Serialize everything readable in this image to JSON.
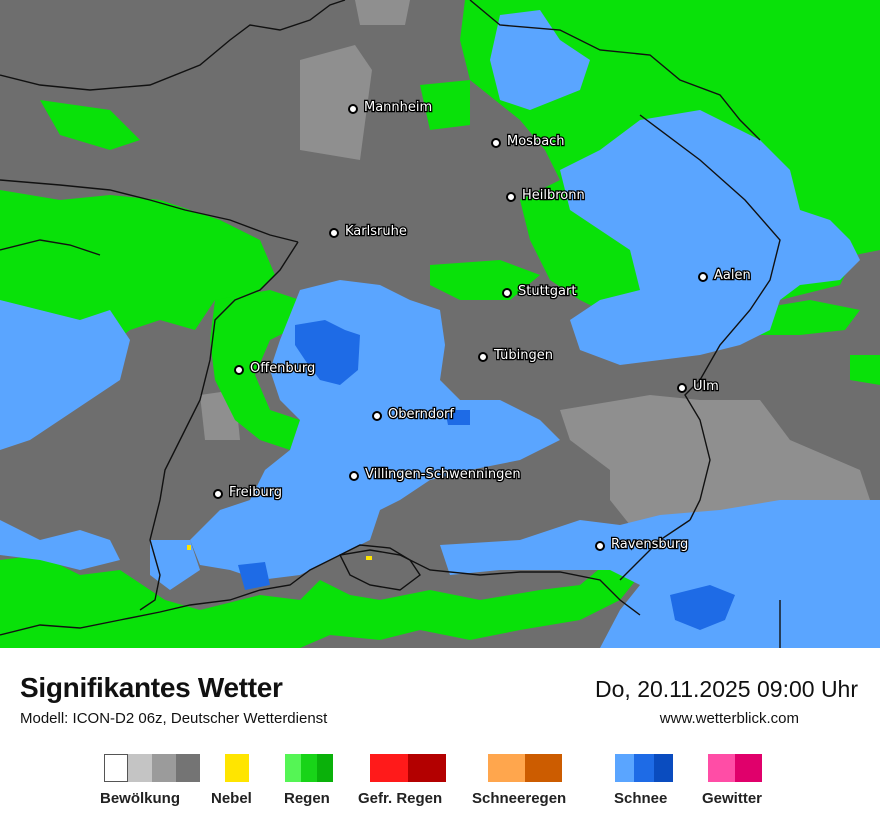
{
  "map": {
    "colors": {
      "cloud_dark": "#6e6e6e",
      "cloud_mid": "#8f8f8f",
      "rain": "#09e109",
      "snow": "#5aa5ff",
      "snow_heavy": "#1e6be6",
      "border": "#111111"
    },
    "cities": [
      {
        "name": "Mannheim"
      },
      {
        "name": "Mosbach"
      },
      {
        "name": "Heilbronn"
      },
      {
        "name": "Karlsruhe"
      },
      {
        "name": "Aalen"
      },
      {
        "name": "Stuttgart"
      },
      {
        "name": "Tübingen"
      },
      {
        "name": "Offenburg"
      },
      {
        "name": "Ulm"
      },
      {
        "name": "Oberndorf"
      },
      {
        "name": "Villingen-Schwenningen"
      },
      {
        "name": "Freiburg"
      },
      {
        "name": "Ravensburg"
      }
    ]
  },
  "footer": {
    "title": "Signifikantes Wetter",
    "subtitle": "Modell: ICON-D2 06z, Deutscher Wetterdienst",
    "datetime": "Do, 20.11.2025 09:00 Uhr",
    "website": "www.wetterblick.com"
  },
  "legend": [
    {
      "label": "Bewölkung",
      "colors": [
        "#ffffff",
        "#c4c4c4",
        "#9b9b9b",
        "#747474"
      ]
    },
    {
      "label": "Nebel",
      "colors": [
        "#ffe500"
      ]
    },
    {
      "label": "Regen",
      "colors": [
        "#55f555",
        "#18d418",
        "#0ab10a"
      ]
    },
    {
      "label": "Gefr. Regen",
      "colors": [
        "#ff1a1a",
        "#b30000"
      ]
    },
    {
      "label": "Schneeregen",
      "colors": [
        "#ffa64d",
        "#cc5c00"
      ]
    },
    {
      "label": "Schnee",
      "colors": [
        "#5aa5ff",
        "#1e6be6",
        "#0a4cbf"
      ]
    },
    {
      "label": "Gewitter",
      "colors": [
        "#ff4da6",
        "#e0006b"
      ]
    }
  ]
}
